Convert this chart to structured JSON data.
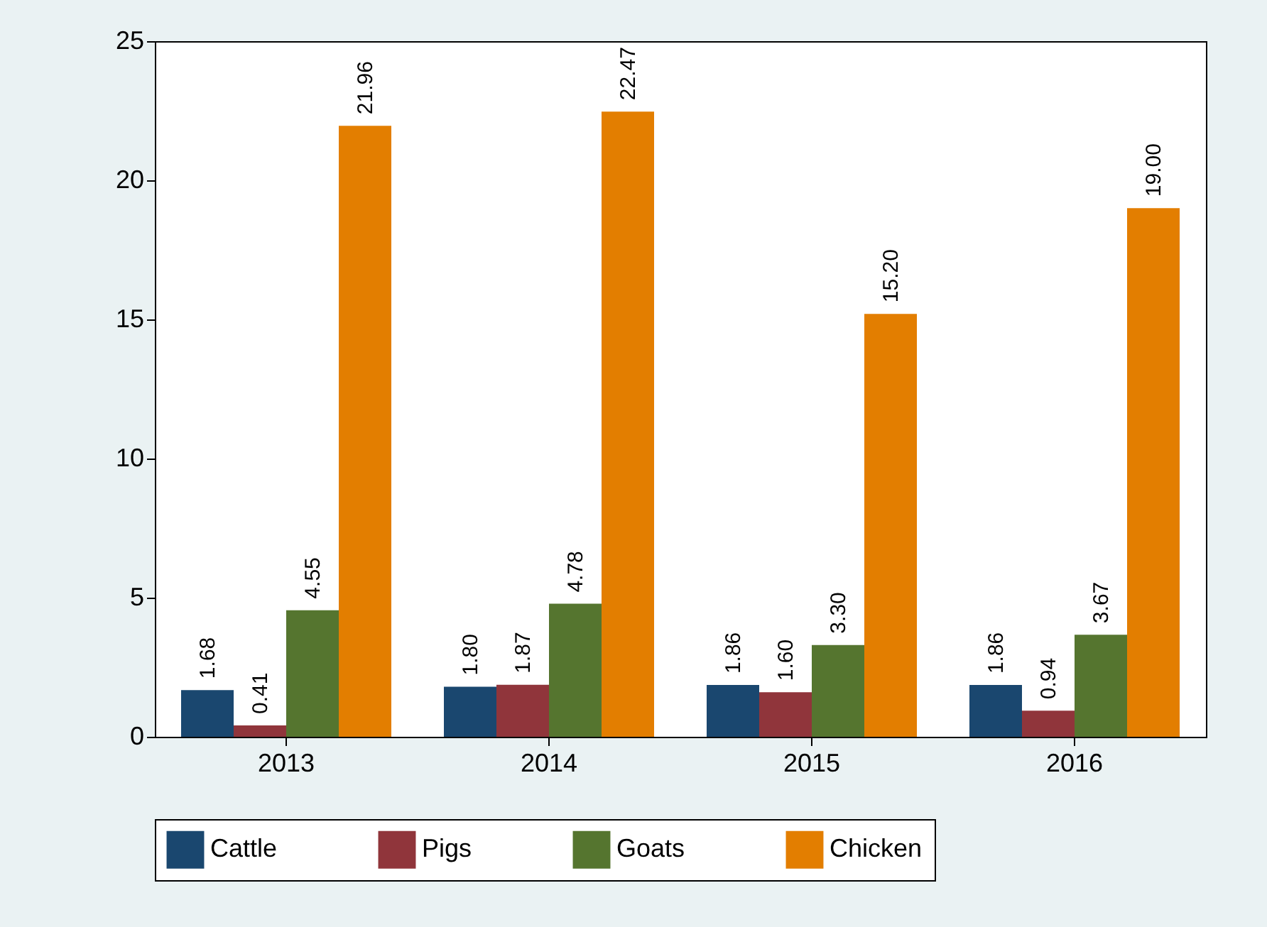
{
  "chart_data": {
    "type": "bar",
    "categories": [
      "2013",
      "2014",
      "2015",
      "2016"
    ],
    "series": [
      {
        "name": "Cattle",
        "color": "#1a476f",
        "values": [
          1.68,
          1.8,
          1.86,
          1.86
        ],
        "value_labels": [
          "1.68",
          "1.80",
          "1.86",
          "1.86"
        ]
      },
      {
        "name": "Pigs",
        "color": "#90353b",
        "values": [
          0.41,
          1.87,
          1.6,
          0.94
        ],
        "value_labels": [
          "0.41",
          "1.87",
          "1.60",
          "0.94"
        ]
      },
      {
        "name": "Goats",
        "color": "#55752f",
        "values": [
          4.55,
          4.78,
          3.3,
          3.67
        ],
        "value_labels": [
          "4.55",
          "4.78",
          "3.30",
          "3.67"
        ]
      },
      {
        "name": "Chicken",
        "color": "#e37e00",
        "values": [
          21.96,
          22.47,
          15.2,
          19.0
        ],
        "value_labels": [
          "21.96",
          "22.47",
          "15.20",
          "19.00"
        ]
      }
    ],
    "ylim": [
      0,
      25
    ],
    "yticks": [
      0,
      5,
      10,
      15,
      20,
      25
    ],
    "legend": "bottom"
  }
}
